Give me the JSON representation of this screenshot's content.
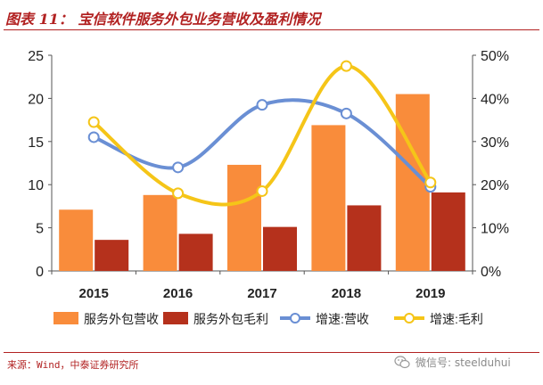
{
  "figure_title": "图表 11： 宝信软件服务外包业务营收及盈利情况",
  "source_note": "来源：Wind，中泰证券研究所",
  "watermark": "微信号: steelduhui",
  "colors": {
    "title_red": "#b22222",
    "bar_revenue": "#f98c3b",
    "bar_margin": "#b5311c",
    "line_revenue_growth": "#6a8fd4",
    "line_margin_growth": "#f5c518"
  },
  "icons": {
    "watermark": "wechat-icon"
  },
  "chart_data": {
    "type": "bar",
    "categories": [
      "2015",
      "2016",
      "2017",
      "2018",
      "2019"
    ],
    "ylim": [
      0,
      25
    ],
    "yticks": [
      0,
      5,
      10,
      15,
      20,
      25
    ],
    "y2lim": [
      0,
      50
    ],
    "y2ticks": [
      "0%",
      "10%",
      "20%",
      "30%",
      "40%",
      "50%"
    ],
    "y2ticks_values": [
      0,
      10,
      20,
      30,
      40,
      50
    ],
    "grid": false,
    "legend_position": "bottom",
    "series": [
      {
        "name": "服务外包营收",
        "type": "bar",
        "axis": "left",
        "color": "#f98c3b",
        "values": [
          7.1,
          8.8,
          12.3,
          16.9,
          20.5
        ]
      },
      {
        "name": "服务外包毛利",
        "type": "bar",
        "axis": "left",
        "color": "#b5311c",
        "values": [
          3.6,
          4.3,
          5.1,
          7.6,
          9.1
        ]
      },
      {
        "name": "增速:营收",
        "type": "line",
        "axis": "right",
        "smooth": true,
        "color": "#6a8fd4",
        "values": [
          31,
          24,
          38.5,
          36.5,
          19.5
        ]
      },
      {
        "name": "增速:毛利",
        "type": "line",
        "axis": "right",
        "smooth": true,
        "color": "#f5c518",
        "values": [
          34.5,
          18,
          18.5,
          47.5,
          20.5
        ]
      }
    ]
  }
}
